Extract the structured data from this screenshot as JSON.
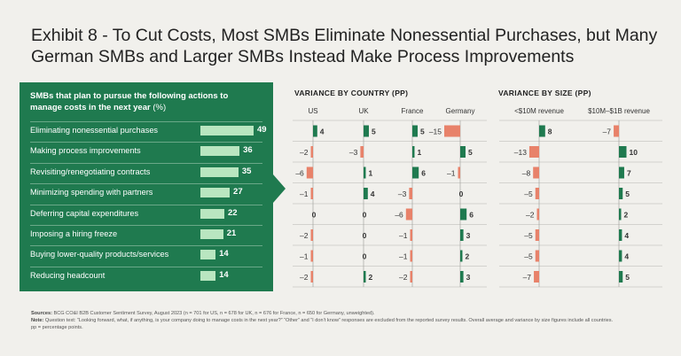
{
  "title": "Exhibit 8 - To Cut Costs, Most SMBs Eliminate Nonessential Purchases, but Many German SMBs and Larger SMBs Instead Make Process Improvements",
  "panel": {
    "heading": "SMBs that plan to pursue the following actions to manage costs in the next year",
    "unit": "(%)"
  },
  "chart_data": [
    {
      "type": "bar",
      "title": "SMBs that plan to pursue the following actions to manage costs in the next year (%)",
      "categories": [
        "Eliminating nonessential purchases",
        "Making process improvements",
        "Revisiting/renegotiating contracts",
        "Minimizing spending with partners",
        "Deferring capital expenditures",
        "Imposing a hiring freeze",
        "Buying lower-quality products/services",
        "Reducing headcount"
      ],
      "values": [
        49,
        36,
        35,
        27,
        22,
        21,
        14,
        14
      ]
    },
    {
      "type": "bar",
      "title": "VARIANCE BY COUNTRY (PP)",
      "series": [
        {
          "name": "US",
          "values": [
            4,
            -2,
            -6,
            -1,
            0,
            -2,
            -1,
            -2
          ]
        },
        {
          "name": "UK",
          "values": [
            5,
            -3,
            1,
            4,
            0,
            0,
            0,
            2
          ]
        },
        {
          "name": "France",
          "values": [
            5,
            1,
            6,
            -3,
            -6,
            -1,
            -1,
            -2
          ]
        },
        {
          "name": "Germany",
          "values": [
            -15,
            5,
            -1,
            0,
            6,
            3,
            2,
            3
          ]
        }
      ]
    },
    {
      "type": "bar",
      "title": "VARIANCE BY SIZE (PP)",
      "series": [
        {
          "name": "<$10M revenue",
          "values": [
            8,
            -13,
            -8,
            -5,
            -2,
            -5,
            -5,
            -7
          ]
        },
        {
          "name": "$10M–$1B revenue",
          "values": [
            -7,
            10,
            7,
            5,
            2,
            4,
            4,
            5
          ]
        }
      ]
    }
  ],
  "value_labels": {
    "country": [
      [
        "4",
        "5",
        "5",
        "–15"
      ],
      [
        "–2",
        "–3",
        "1",
        "5"
      ],
      [
        "–6",
        "1",
        "6",
        "–1"
      ],
      [
        "–1",
        "4",
        "–3",
        "0"
      ],
      [
        "0",
        "0",
        "–6",
        "6"
      ],
      [
        "–2",
        "0",
        "–1",
        "3"
      ],
      [
        "–1",
        "0",
        "–1",
        "2"
      ],
      [
        "–2",
        "2",
        "–2",
        "3"
      ]
    ],
    "size": [
      [
        "8",
        "–7"
      ],
      [
        "–13",
        "10"
      ],
      [
        "–8",
        "7"
      ],
      [
        "–5",
        "5"
      ],
      [
        "–2",
        "2"
      ],
      [
        "–5",
        "4"
      ],
      [
        "–5",
        "4"
      ],
      [
        "–7",
        "5"
      ]
    ]
  },
  "colors": {
    "panel": "#1f7a4f",
    "panel_bar": "#b9e6c0",
    "positive": "#1f7a4f",
    "negative": "#e8826a"
  },
  "notes": {
    "sources_label": "Sources:",
    "sources": "BCG CO&I B2B Customer Sentiment Survey, August 2023 (n = 701 for US, n = 678 for UK, n = 676 for France, n = 650 for Germany, unweighted).",
    "note_label": "Note:",
    "note": "Question text: “Looking forward, what, if anything, is your company doing to manage costs in the next year?” “Other” and “I don’t know” responses are excluded from the reported survey results. Overall average and variance by size figures include all countries.",
    "pp": "pp = percentage points."
  }
}
